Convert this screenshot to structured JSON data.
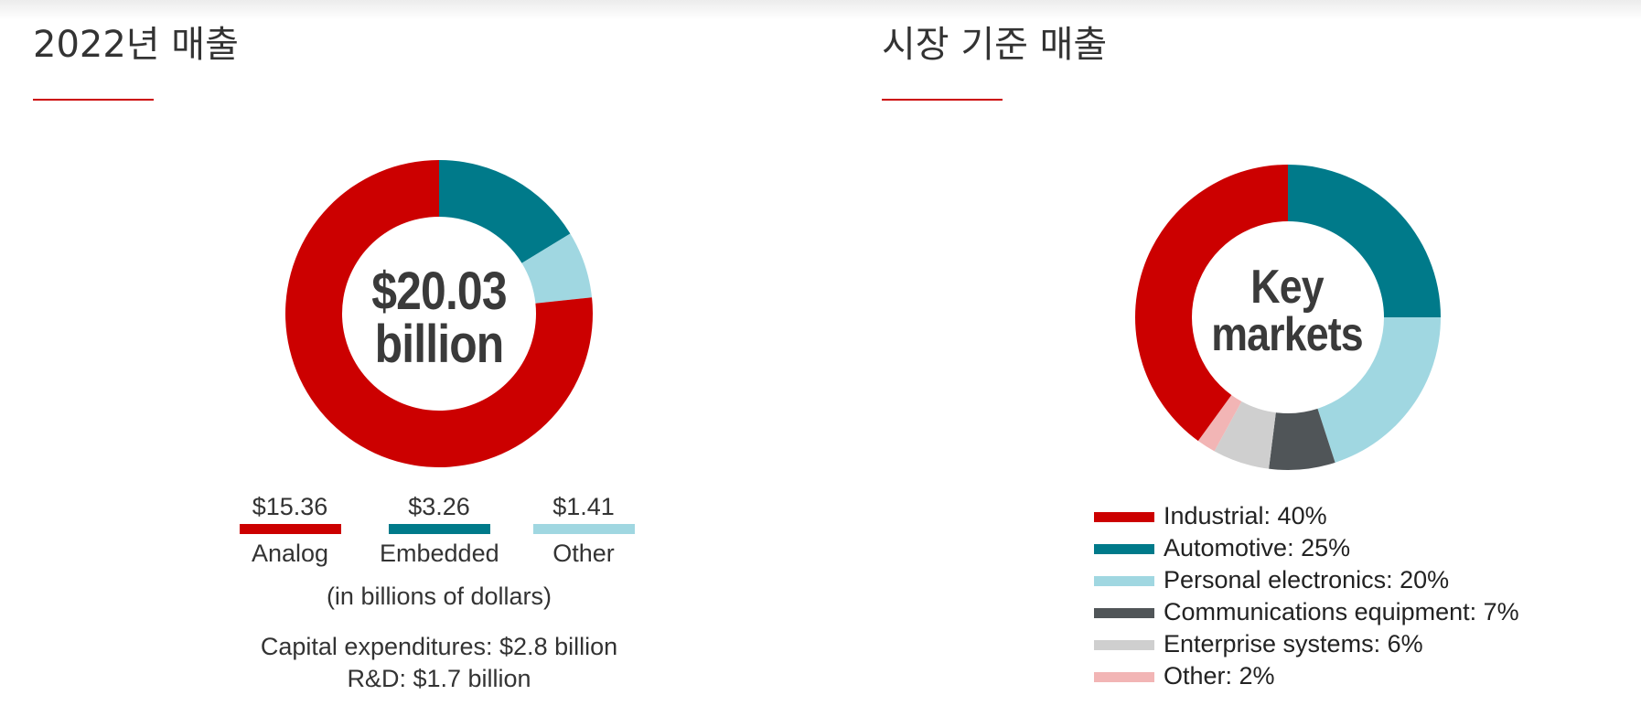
{
  "colors": {
    "accent": "#cc0000",
    "analog": "#cc0000",
    "embedded": "#007a8a",
    "other": "#a0d7e1",
    "industrial": "#cc0000",
    "automotive": "#007a8a",
    "personal": "#a0d7e1",
    "communications": "#505558",
    "enterprise": "#cfcfcf",
    "other_markets": "#f2b5b5"
  },
  "revenue_panel": {
    "title": "2022년 매출",
    "center_line1": "$20.03",
    "center_line2": "billion",
    "unit_note": "(in billions of dollars)",
    "capex": "Capital expenditures: $2.8 billion",
    "rnd": "R&D: $1.7 billion"
  },
  "markets_panel": {
    "title": "시장 기준 매출",
    "center_line1": "Key",
    "center_line2": "markets"
  },
  "chart_data": [
    {
      "type": "pie",
      "title": "2022년 매출",
      "categories": [
        "Analog",
        "Embedded",
        "Other"
      ],
      "value_labels": [
        "$15.36",
        "$3.26",
        "$1.41"
      ],
      "values": [
        15.36,
        3.26,
        1.41
      ],
      "total": 20.03,
      "unit": "billions of dollars",
      "colors": [
        "#cc0000",
        "#007a8a",
        "#a0d7e1"
      ],
      "legend_position": "bottom"
    },
    {
      "type": "pie",
      "title": "시장 기준 매출",
      "categories": [
        "Industrial",
        "Automotive",
        "Personal electronics",
        "Communications equipment",
        "Enterprise systems",
        "Other"
      ],
      "legend_labels": [
        "Industrial: 40%",
        "Automotive: 25%",
        "Personal electronics: 20%",
        "Communications equipment: 7%",
        "Enterprise systems: 6%",
        "Other: 2%"
      ],
      "values": [
        40,
        25,
        20,
        7,
        6,
        2
      ],
      "unit": "%",
      "colors": [
        "#cc0000",
        "#007a8a",
        "#a0d7e1",
        "#505558",
        "#cfcfcf",
        "#f2b5b5"
      ],
      "legend_position": "bottom-left"
    }
  ]
}
